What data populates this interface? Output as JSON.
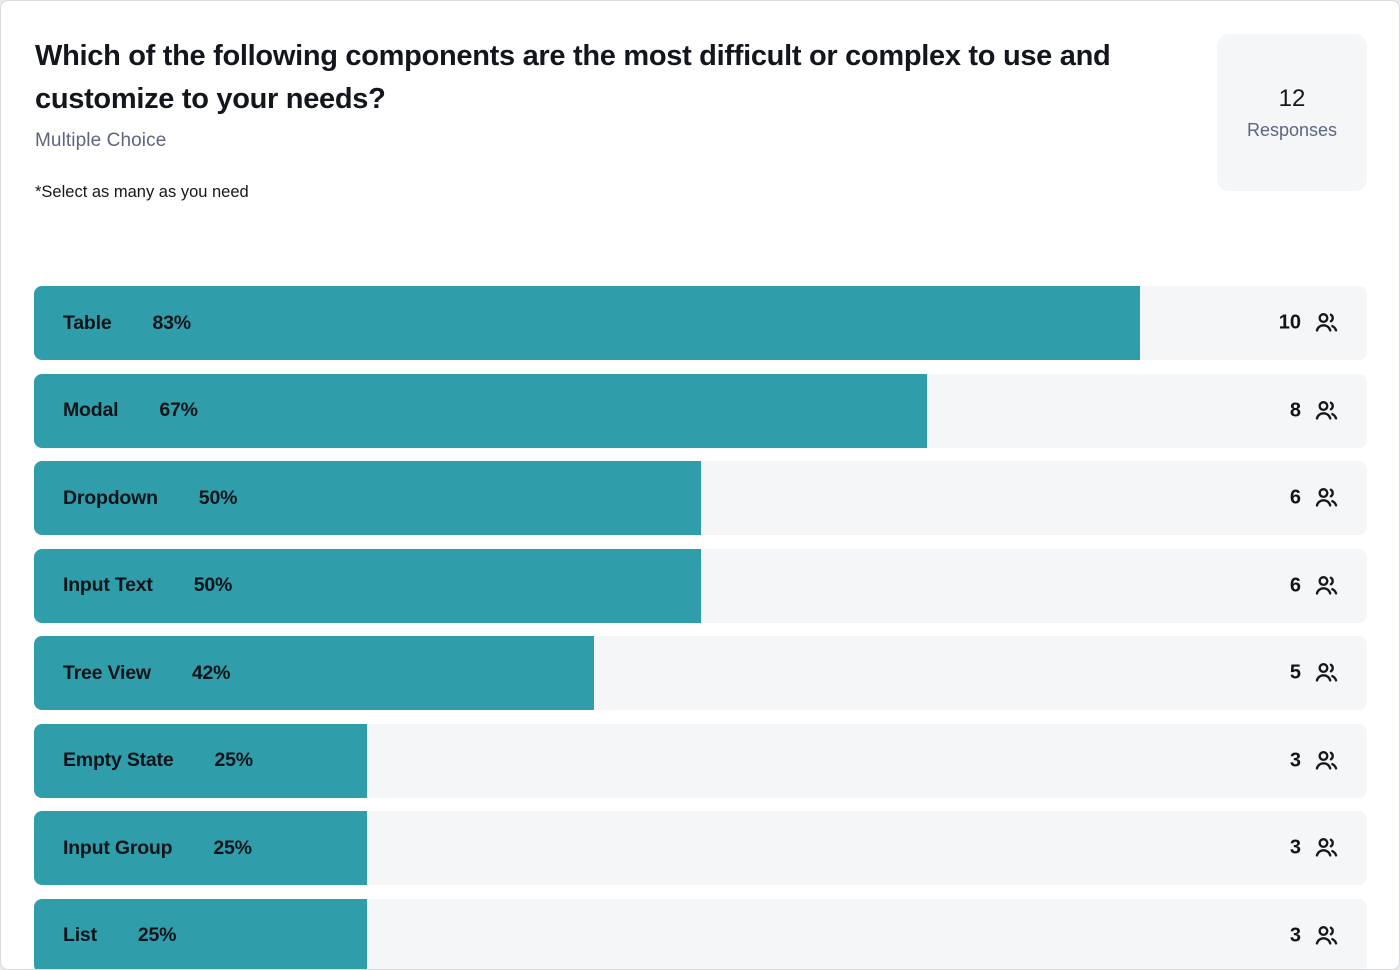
{
  "page": {
    "title": "Which of the following components are the most difficult or complex to use and customize to your needs?",
    "question_type": "Multiple Choice",
    "note": "*Select as many as you need",
    "responses_count": "12",
    "responses_label": "Responses"
  },
  "chart_data": {
    "type": "bar",
    "orientation": "horizontal",
    "title": "Which of the following components are the most difficult or complex to use and customize to your needs?",
    "categories": [
      "Table",
      "Modal",
      "Dropdown",
      "Input Text",
      "Tree View",
      "Empty State",
      "Input Group",
      "List"
    ],
    "series": [
      {
        "name": "Percent of responses",
        "values": [
          83,
          67,
          50,
          50,
          42,
          25,
          25,
          25
        ]
      },
      {
        "name": "Response count",
        "values": [
          10,
          8,
          6,
          6,
          5,
          3,
          3,
          3
        ]
      }
    ],
    "percent_labels": [
      "83%",
      "67%",
      "50%",
      "50%",
      "42%",
      "25%",
      "25%",
      "25%"
    ],
    "count_labels": [
      "10",
      "8",
      "6",
      "6",
      "5",
      "3",
      "3",
      "3"
    ],
    "total_responses": 12,
    "xlim": [
      0,
      100
    ],
    "grid": false,
    "legend": "none",
    "value_label_position": "inside-bar-left"
  },
  "colors": {
    "bar": "#2F9EAA",
    "track": "#F5F6F7",
    "title_text": "#14161D",
    "muted_text": "#5D6580",
    "panel_bg": "#F5F6F8",
    "card_bg": "#FFFFFF"
  },
  "icons": {
    "count_icon": "users-icon"
  }
}
